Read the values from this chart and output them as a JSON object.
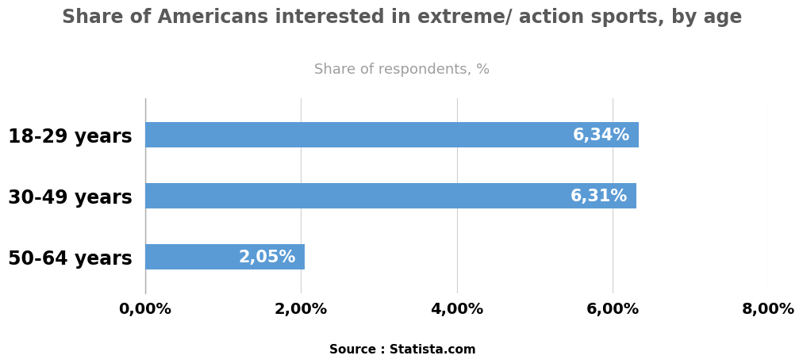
{
  "title": "Share of Americans interested in extreme/ action sports, by age",
  "subtitle": "Share of respondents, %",
  "source": "Source : Statista.com",
  "categories": [
    "50-64 years",
    "30-49 years",
    "18-29 years"
  ],
  "values": [
    2.05,
    6.31,
    6.34
  ],
  "bar_labels": [
    "2,05%",
    "6,31%",
    "6,34%"
  ],
  "bar_color": "#5b9bd5",
  "xlim": [
    0,
    8.0
  ],
  "xticks": [
    0,
    2.0,
    4.0,
    6.0,
    8.0
  ],
  "xtick_labels": [
    "0,00%",
    "2,00%",
    "4,00%",
    "6,00%",
    "8,00%"
  ],
  "title_color": "#595959",
  "subtitle_color": "#9e9e9e",
  "ytick_color": "#000000",
  "xtick_color": "#000000",
  "bar_label_color": "#ffffff",
  "bar_label_fontsize": 15,
  "title_fontsize": 17,
  "subtitle_fontsize": 13,
  "ytick_fontsize": 17,
  "xtick_fontsize": 14,
  "source_fontsize": 11,
  "background_color": "#ffffff",
  "bar_height": 0.42
}
